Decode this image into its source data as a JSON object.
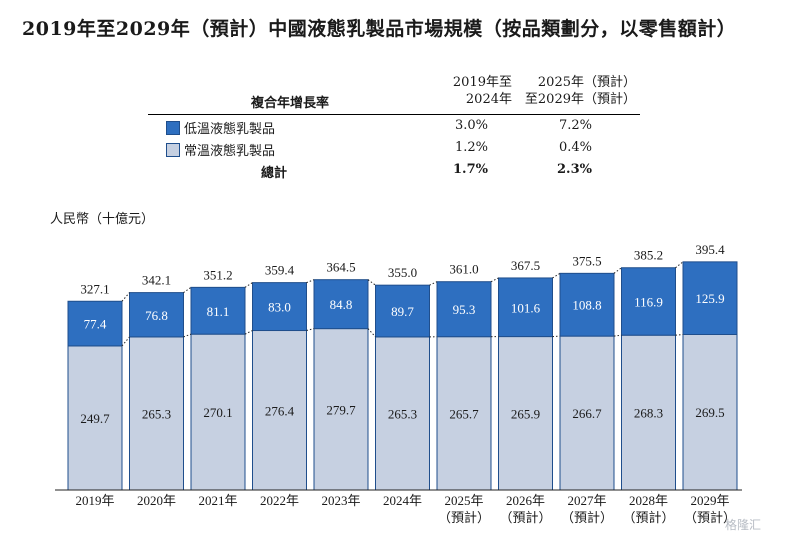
{
  "title": "2019年至2029年（預計）中國液態乳製品市場規模（按品類劃分，以零售額計）",
  "cagr_table": {
    "header_label": "複合年增長率",
    "col1": [
      "2019年至",
      "2024年"
    ],
    "col2": [
      "2025年（預計）",
      "至2029年（預計）"
    ],
    "rows": [
      {
        "name": "低溫液態乳製品",
        "v1": "3.0%",
        "v2": "7.2%",
        "color": "#2e6fc0"
      },
      {
        "name": "常溫液態乳製品",
        "v1": "1.2%",
        "v2": "0.4%",
        "color": "#c6d0e1"
      },
      {
        "name": "總計",
        "v1": "1.7%",
        "v2": "2.3%"
      }
    ]
  },
  "unit_label": "人民幣（十億元）",
  "watermark": "格隆汇",
  "chart_data": {
    "type": "bar",
    "stacked": true,
    "categories": [
      "2019年",
      "2020年",
      "2021年",
      "2022年",
      "2023年",
      "2024年",
      "2025年（預計）",
      "2026年（預計）",
      "2027年（預計）",
      "2028年（預計）",
      "2029年（預計）"
    ],
    "series": [
      {
        "name": "常溫液態乳製品",
        "values": [
          249.7,
          265.3,
          270.1,
          276.4,
          279.7,
          265.3,
          265.7,
          265.9,
          266.7,
          268.3,
          269.5
        ],
        "color": "#c6d0e1"
      },
      {
        "name": "低溫液態乳製品",
        "values": [
          77.4,
          76.8,
          81.1,
          83.0,
          84.8,
          89.7,
          95.3,
          101.6,
          108.8,
          116.9,
          125.9
        ],
        "color": "#2e6fc0"
      }
    ],
    "totals": [
      327.1,
      342.1,
      351.2,
      359.4,
      364.5,
      355.0,
      361.0,
      367.5,
      375.5,
      385.2,
      395.4
    ],
    "category_lines": [
      [
        "2019年"
      ],
      [
        "2020年"
      ],
      [
        "2021年"
      ],
      [
        "2022年"
      ],
      [
        "2023年"
      ],
      [
        "2024年"
      ],
      [
        "2025年",
        "（預計）"
      ],
      [
        "2026年",
        "（預計）"
      ],
      [
        "2027年",
        "（預計）"
      ],
      [
        "2028年",
        "（預計）"
      ],
      [
        "2029年",
        "（預計）"
      ]
    ],
    "ylim": [
      0,
      400
    ],
    "grid": false,
    "legend": "top"
  }
}
